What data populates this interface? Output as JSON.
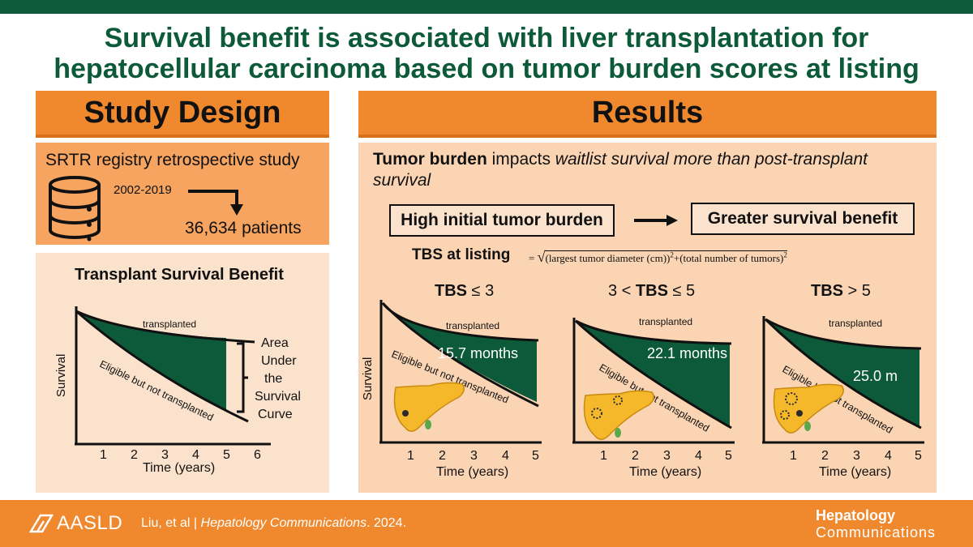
{
  "title": {
    "line1": "Survival benefit is associated with liver transplantation for",
    "line2": "hepatocellular carcinoma based on tumor burden scores at listing"
  },
  "study_design": {
    "header": "Study Design",
    "study": "SRTR registry retrospective study",
    "years": "2002-2019",
    "patients": "36,634 patients",
    "icon": "database-icon"
  },
  "tsb": {
    "title": "Transplant Survival Benefit",
    "y_label": "Survival",
    "x_label": "Time (years)",
    "x_ticks": [
      "1",
      "2",
      "3",
      "4",
      "5",
      "6"
    ],
    "transplanted": "transplanted",
    "eligible": "Eligible but not transplanted",
    "area": [
      "Area",
      "Under",
      "the",
      "Survival",
      "Curve"
    ]
  },
  "results": {
    "header": "Results",
    "summary_bold": "Tumor burden",
    "summary_mid": " impacts ",
    "summary_italic": "waitlist survival more than post-transplant survival",
    "high_label": "High initial tumor burden",
    "benefit_label": "Greater survival benefit",
    "tbs_label": "TBS at listing",
    "formula_eq": "=",
    "formula_a": "(largest tumor diameter (cm))",
    "formula_plus": "+(total number of tumors)",
    "formula_exp": "2"
  },
  "panels": [
    {
      "pre": "",
      "bold": "TBS",
      "post": " ≤ 3",
      "value": "15.7 months",
      "transplanted": "transplanted",
      "eligible": "Eligible but not transplanted"
    },
    {
      "pre": "3 < ",
      "bold": "TBS",
      "post": " ≤ 5",
      "value": "22.1 months",
      "transplanted": "transplanted",
      "eligible": "Eligible but not transplanted"
    },
    {
      "pre": "",
      "bold": "TBS",
      "post": " > 5",
      "value": "25.0 m",
      "transplanted": "transplanted",
      "eligible": "Eligible but not transplanted"
    }
  ],
  "panel_axes": {
    "y_label": "Survival",
    "x_label": "Time (years)",
    "x_ticks": [
      "1",
      "2",
      "3",
      "4",
      "5"
    ]
  },
  "footer": {
    "logo": "AASLD",
    "citation_authors": "Liu, et al",
    "citation_sep": " | ",
    "citation_journal": "Hepatology Communications",
    "citation_year": ". 2024.",
    "journal_brand_1": "Hepatology",
    "journal_brand_2": "Communications"
  },
  "colors": {
    "green": "#0d5a3a",
    "orange": "#f0882e",
    "liver": "#f5b82a"
  }
}
